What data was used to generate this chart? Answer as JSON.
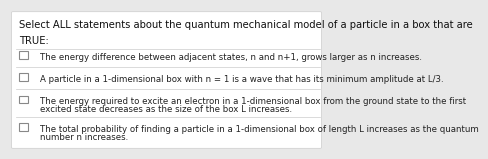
{
  "title_line1": "Select ALL statements about the quantum mechanical model of a particle in a box that are",
  "title_line2": "TRUE:",
  "background_color": "#e8e8e8",
  "card_color": "#ffffff",
  "title_fontsize": 7.2,
  "item_fontsize": 6.2,
  "items": [
    {
      "lines": [
        "The energy difference between adjacent states, n and n+1, grows larger as n increases."
      ]
    },
    {
      "lines": [
        "A particle in a 1-dimensional box with n = 1 is a wave that has its minimum amplitude at L/3."
      ]
    },
    {
      "lines": [
        "The energy required to excite an electron in a 1-dimensional box from the ground state to the first",
        "excited state decreases as the size of the box L increases."
      ]
    },
    {
      "lines": [
        "The total probability of finding a particle in a 1-dimensional box of length L increases as the quantum",
        "number n increases."
      ]
    }
  ],
  "divider_color": "#cccccc",
  "checkbox_color": "#888888",
  "text_color": "#222222",
  "title_color": "#111111"
}
